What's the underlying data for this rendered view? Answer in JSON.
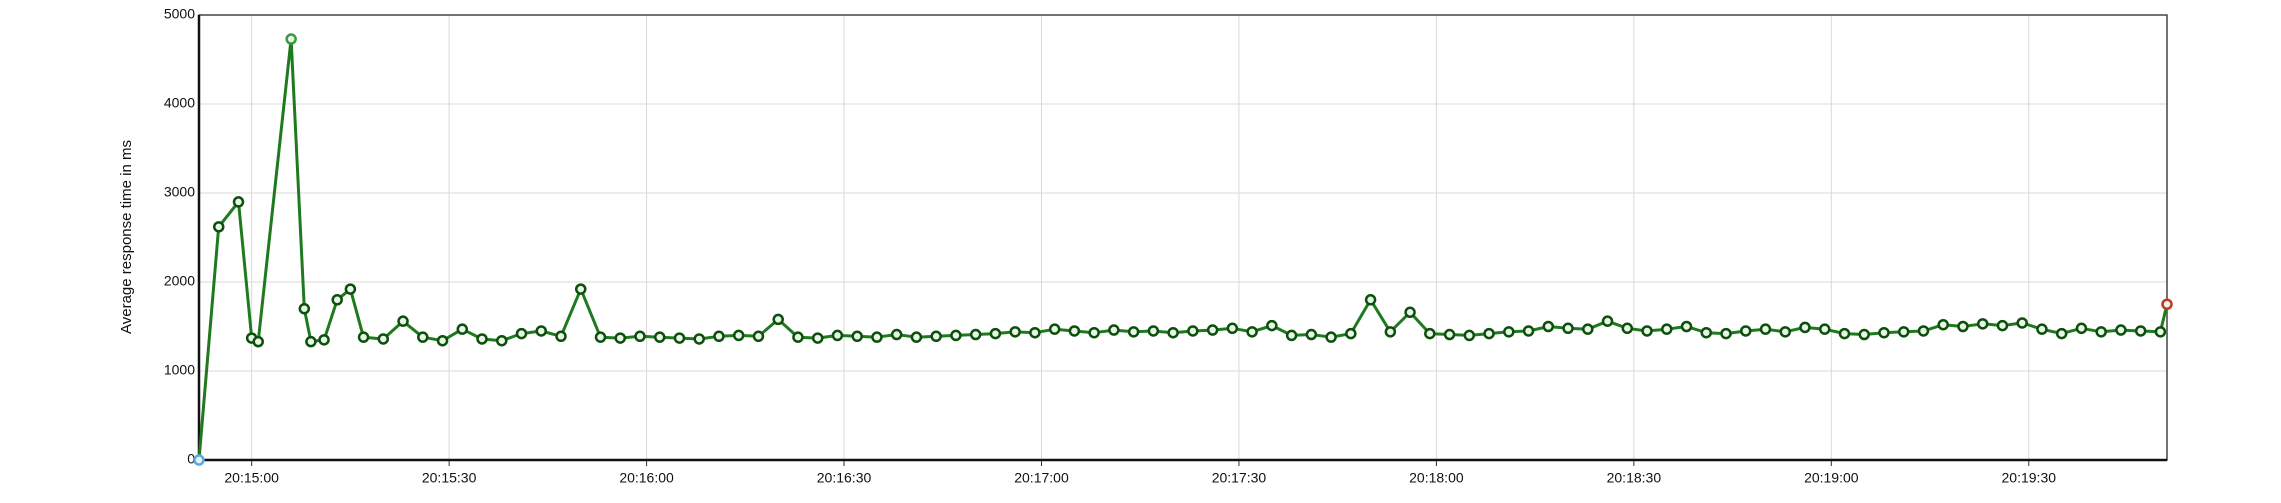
{
  "chart_data": {
    "type": "line",
    "y_label": "Average response time in ms",
    "x": [
      "20:14:52",
      "20:14:55",
      "20:14:58",
      "20:15:00",
      "20:15:01",
      "20:15:06",
      "20:15:08",
      "20:15:09",
      "20:15:11",
      "20:15:13",
      "20:15:15",
      "20:15:17",
      "20:15:20",
      "20:15:23",
      "20:15:26",
      "20:15:29",
      "20:15:32",
      "20:15:35",
      "20:15:38",
      "20:15:41",
      "20:15:44",
      "20:15:47",
      "20:15:50",
      "20:15:53",
      "20:15:56",
      "20:15:59",
      "20:16:02",
      "20:16:05",
      "20:16:08",
      "20:16:11",
      "20:16:14",
      "20:16:17",
      "20:16:20",
      "20:16:23",
      "20:16:26",
      "20:16:29",
      "20:16:32",
      "20:16:35",
      "20:16:38",
      "20:16:41",
      "20:16:44",
      "20:16:47",
      "20:16:50",
      "20:16:53",
      "20:16:56",
      "20:16:59",
      "20:17:02",
      "20:17:05",
      "20:17:08",
      "20:17:11",
      "20:17:14",
      "20:17:17",
      "20:17:20",
      "20:17:23",
      "20:17:26",
      "20:17:29",
      "20:17:32",
      "20:17:35",
      "20:17:38",
      "20:17:41",
      "20:17:44",
      "20:17:47",
      "20:17:50",
      "20:17:53",
      "20:17:56",
      "20:17:59",
      "20:18:02",
      "20:18:05",
      "20:18:08",
      "20:18:11",
      "20:18:14",
      "20:18:17",
      "20:18:20",
      "20:18:23",
      "20:18:26",
      "20:18:29",
      "20:18:32",
      "20:18:35",
      "20:18:38",
      "20:18:41",
      "20:18:44",
      "20:18:47",
      "20:18:50",
      "20:18:53",
      "20:18:56",
      "20:18:59",
      "20:19:02",
      "20:19:05",
      "20:19:08",
      "20:19:11",
      "20:19:14",
      "20:19:17",
      "20:19:20",
      "20:19:23",
      "20:19:26",
      "20:19:29",
      "20:19:32",
      "20:19:35",
      "20:19:38",
      "20:19:41",
      "20:19:44",
      "20:19:47",
      "20:19:50",
      "20:19:51"
    ],
    "values": [
      0,
      2620,
      2900,
      1370,
      1330,
      4730,
      1700,
      1330,
      1350,
      1800,
      1920,
      1380,
      1360,
      1560,
      1380,
      1340,
      1470,
      1360,
      1340,
      1420,
      1450,
      1390,
      1920,
      1380,
      1370,
      1390,
      1380,
      1370,
      1360,
      1390,
      1400,
      1390,
      1580,
      1380,
      1370,
      1400,
      1390,
      1380,
      1410,
      1380,
      1390,
      1400,
      1410,
      1420,
      1440,
      1430,
      1470,
      1450,
      1430,
      1460,
      1440,
      1450,
      1430,
      1450,
      1460,
      1480,
      1440,
      1510,
      1400,
      1410,
      1380,
      1420,
      1800,
      1440,
      1660,
      1420,
      1410,
      1400,
      1420,
      1440,
      1450,
      1500,
      1480,
      1470,
      1560,
      1480,
      1450,
      1470,
      1500,
      1430,
      1420,
      1450,
      1470,
      1440,
      1490,
      1470,
      1420,
      1410,
      1430,
      1440,
      1450,
      1520,
      1500,
      1530,
      1510,
      1540,
      1470,
      1420,
      1480,
      1440,
      1460,
      1450,
      1440,
      1750
    ],
    "color": "#1f7a1f",
    "marker_color": "#0b4f0b",
    "first_point_color": "#5aa9e6",
    "max_point_color": "#3c9a3c",
    "last_point_color": "#c0392b",
    "xlim": [
      "20:14:52",
      "20:19:51"
    ],
    "xticks": [
      "20:15:00",
      "20:15:30",
      "20:16:00",
      "20:16:30",
      "20:17:00",
      "20:17:30",
      "20:18:00",
      "20:18:30",
      "20:19:00",
      "20:19:30"
    ],
    "ylim": [
      0,
      5000
    ],
    "yticks": [
      0,
      1000,
      2000,
      3000,
      4000,
      5000
    ],
    "grid": true
  }
}
